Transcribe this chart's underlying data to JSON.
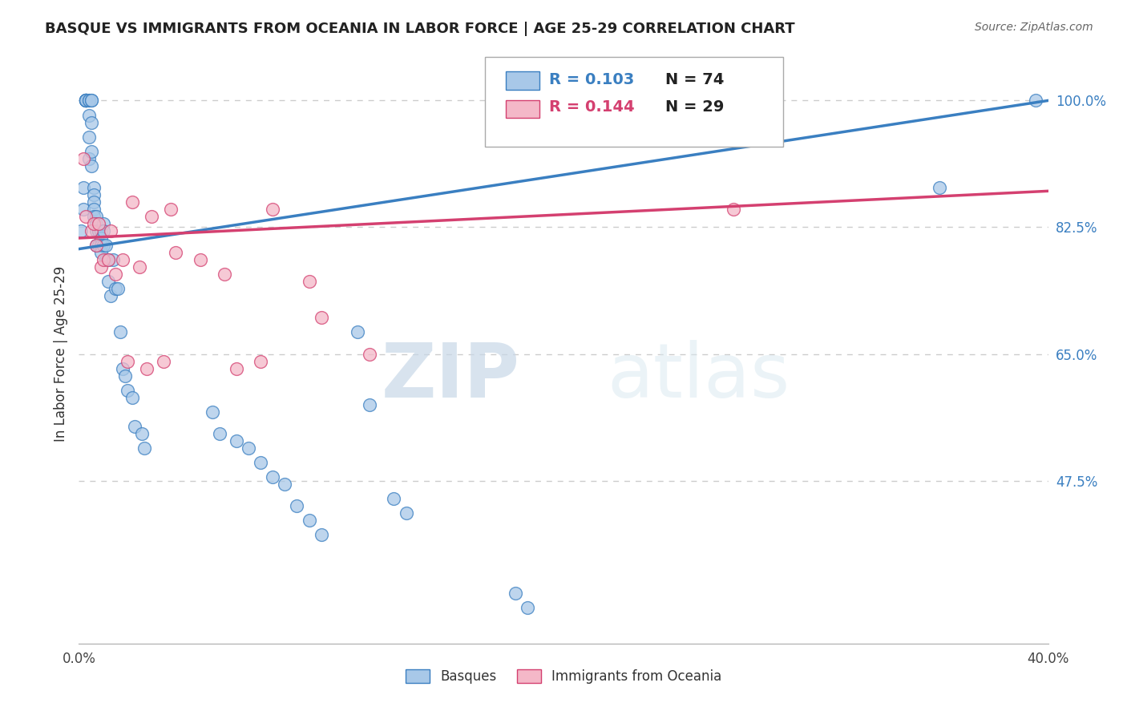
{
  "title": "BASQUE VS IMMIGRANTS FROM OCEANIA IN LABOR FORCE | AGE 25-29 CORRELATION CHART",
  "source": "Source: ZipAtlas.com",
  "ylabel": "In Labor Force | Age 25-29",
  "legend_label_blue": "Basques",
  "legend_label_pink": "Immigrants from Oceania",
  "R_blue": 0.103,
  "N_blue": 74,
  "R_pink": 0.144,
  "N_pink": 29,
  "blue_color": "#a8c8e8",
  "pink_color": "#f4b8c8",
  "blue_line_color": "#3a7fc1",
  "pink_line_color": "#d44070",
  "xlim": [
    0.0,
    0.4
  ],
  "ylim": [
    0.25,
    1.05
  ],
  "yticks": [
    1.0,
    0.825,
    0.65,
    0.475
  ],
  "ytick_labels": [
    "100.0%",
    "82.5%",
    "65.0%",
    "47.5%"
  ],
  "blue_line_x0": 0.0,
  "blue_line_y0": 0.795,
  "blue_line_x1": 0.4,
  "blue_line_y1": 1.0,
  "pink_line_x0": 0.0,
  "pink_line_y0": 0.81,
  "pink_line_x1": 0.4,
  "pink_line_y1": 0.875,
  "blue_x": [
    0.001,
    0.002,
    0.002,
    0.003,
    0.003,
    0.003,
    0.003,
    0.003,
    0.003,
    0.003,
    0.003,
    0.004,
    0.004,
    0.004,
    0.004,
    0.004,
    0.005,
    0.005,
    0.005,
    0.005,
    0.005,
    0.006,
    0.006,
    0.006,
    0.006,
    0.006,
    0.007,
    0.007,
    0.007,
    0.007,
    0.008,
    0.008,
    0.008,
    0.009,
    0.009,
    0.009,
    0.009,
    0.01,
    0.01,
    0.01,
    0.011,
    0.011,
    0.012,
    0.012,
    0.013,
    0.014,
    0.015,
    0.016,
    0.017,
    0.018,
    0.019,
    0.02,
    0.022,
    0.023,
    0.026,
    0.027,
    0.055,
    0.058,
    0.065,
    0.07,
    0.075,
    0.08,
    0.085,
    0.09,
    0.095,
    0.1,
    0.115,
    0.12,
    0.13,
    0.135,
    0.18,
    0.185,
    0.355,
    0.395
  ],
  "blue_y": [
    0.82,
    0.85,
    0.88,
    1.0,
    1.0,
    1.0,
    1.0,
    1.0,
    1.0,
    1.0,
    1.0,
    1.0,
    1.0,
    0.98,
    0.95,
    0.92,
    1.0,
    1.0,
    0.97,
    0.93,
    0.91,
    0.88,
    0.87,
    0.86,
    0.85,
    0.84,
    0.84,
    0.83,
    0.82,
    0.8,
    0.82,
    0.82,
    0.8,
    0.82,
    0.81,
    0.8,
    0.79,
    0.83,
    0.82,
    0.8,
    0.8,
    0.78,
    0.78,
    0.75,
    0.73,
    0.78,
    0.74,
    0.74,
    0.68,
    0.63,
    0.62,
    0.6,
    0.59,
    0.55,
    0.54,
    0.52,
    0.57,
    0.54,
    0.53,
    0.52,
    0.5,
    0.48,
    0.47,
    0.44,
    0.42,
    0.4,
    0.68,
    0.58,
    0.45,
    0.43,
    0.32,
    0.3,
    0.88,
    1.0
  ],
  "pink_x": [
    0.002,
    0.003,
    0.005,
    0.006,
    0.007,
    0.008,
    0.009,
    0.01,
    0.012,
    0.013,
    0.015,
    0.018,
    0.02,
    0.022,
    0.025,
    0.028,
    0.03,
    0.035,
    0.038,
    0.04,
    0.05,
    0.06,
    0.065,
    0.075,
    0.08,
    0.095,
    0.1,
    0.12,
    0.27
  ],
  "pink_y": [
    0.92,
    0.84,
    0.82,
    0.83,
    0.8,
    0.83,
    0.77,
    0.78,
    0.78,
    0.82,
    0.76,
    0.78,
    0.64,
    0.86,
    0.77,
    0.63,
    0.84,
    0.64,
    0.85,
    0.79,
    0.78,
    0.76,
    0.63,
    0.64,
    0.85,
    0.75,
    0.7,
    0.65,
    0.85
  ],
  "watermark_zip": "ZIP",
  "watermark_atlas": "atlas",
  "background_color": "#ffffff",
  "grid_color": "#cccccc"
}
